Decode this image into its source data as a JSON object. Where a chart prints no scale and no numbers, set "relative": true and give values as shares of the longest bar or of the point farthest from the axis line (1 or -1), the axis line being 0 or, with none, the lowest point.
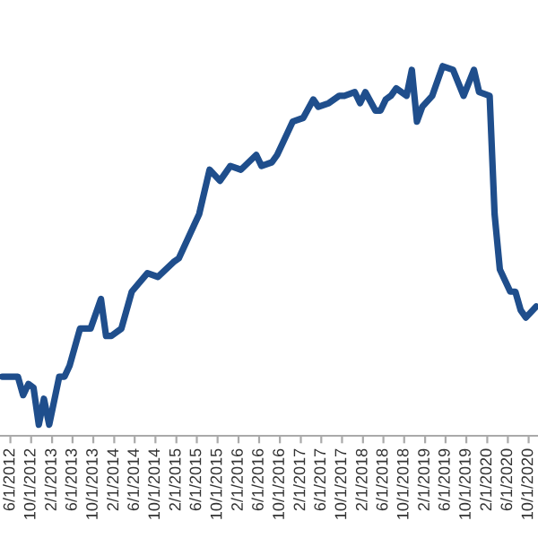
{
  "chart_data": {
    "type": "line",
    "relative": true,
    "marker": "none",
    "line_style": "solid",
    "x": [
      "2012-04",
      "2012-07",
      "2012-08",
      "2012-09",
      "2012-10",
      "2012-11",
      "2012-12",
      "2013-01",
      "2013-03",
      "2013-04",
      "2013-05",
      "2013-07",
      "2013-09",
      "2013-11",
      "2013-12",
      "2014-01",
      "2014-03",
      "2014-05",
      "2014-08",
      "2014-10",
      "2015-01",
      "2015-02",
      "2015-06",
      "2015-08",
      "2015-10",
      "2015-12",
      "2016-02",
      "2016-05",
      "2016-06",
      "2016-08",
      "2016-09",
      "2016-11",
      "2016-12",
      "2017-02",
      "2017-04",
      "2017-05",
      "2017-07",
      "2017-09",
      "2017-10",
      "2017-12",
      "2018-01",
      "2018-02",
      "2018-04",
      "2018-05",
      "2018-06",
      "2018-07",
      "2018-08",
      "2018-10",
      "2018-11",
      "2018-12",
      "2019-01",
      "2019-03",
      "2019-05",
      "2019-07",
      "2019-09",
      "2019-11",
      "2019-12",
      "2020-02",
      "2020-03",
      "2020-04",
      "2020-06",
      "2020-07",
      "2020-08",
      "2020-09",
      "2020-11"
    ],
    "series": [
      {
        "color": "#1f4e8c",
        "values": [
          0.16,
          0.16,
          0.11,
          0.14,
          0.13,
          0.03,
          0.1,
          0.03,
          0.16,
          0.16,
          0.19,
          0.29,
          0.29,
          0.37,
          0.27,
          0.27,
          0.29,
          0.39,
          0.44,
          0.43,
          0.47,
          0.48,
          0.6,
          0.72,
          0.69,
          0.73,
          0.72,
          0.76,
          0.73,
          0.74,
          0.76,
          0.82,
          0.85,
          0.86,
          0.91,
          0.89,
          0.9,
          0.92,
          0.92,
          0.93,
          0.9,
          0.93,
          0.88,
          0.88,
          0.91,
          0.92,
          0.94,
          0.92,
          0.99,
          0.85,
          0.89,
          0.92,
          1.0,
          0.99,
          0.92,
          0.99,
          0.93,
          0.92,
          0.6,
          0.45,
          0.39,
          0.39,
          0.34,
          0.32,
          0.35
        ]
      }
    ],
    "xlim": [
      "2012-04-01",
      "2020-11-25"
    ],
    "xticks": [
      {
        "value": "2012-06-01",
        "label": "6/1/2012"
      },
      {
        "value": "2012-10-01",
        "label": "10/1/2012"
      },
      {
        "value": "2013-02-01",
        "label": "2/1/2013"
      },
      {
        "value": "2013-06-01",
        "label": "6/1/2013"
      },
      {
        "value": "2013-10-01",
        "label": "10/1/2013"
      },
      {
        "value": "2014-02-01",
        "label": "2/1/2014"
      },
      {
        "value": "2014-06-01",
        "label": "6/1/2014"
      },
      {
        "value": "2014-10-01",
        "label": "10/1/2014"
      },
      {
        "value": "2015-02-01",
        "label": "2/1/2015"
      },
      {
        "value": "2015-06-01",
        "label": "6/1/2015"
      },
      {
        "value": "2015-10-01",
        "label": "10/1/2015"
      },
      {
        "value": "2016-02-01",
        "label": "2/1/2016"
      },
      {
        "value": "2016-06-01",
        "label": "6/1/2016"
      },
      {
        "value": "2016-10-01",
        "label": "10/1/2016"
      },
      {
        "value": "2017-02-01",
        "label": "2/1/2017"
      },
      {
        "value": "2017-06-01",
        "label": "6/1/2017"
      },
      {
        "value": "2017-10-01",
        "label": "10/1/2017"
      },
      {
        "value": "2018-02-01",
        "label": "2/1/2018"
      },
      {
        "value": "2018-06-01",
        "label": "6/1/2018"
      },
      {
        "value": "2018-10-01",
        "label": "10/1/2018"
      },
      {
        "value": "2019-02-01",
        "label": "2/1/2019"
      },
      {
        "value": "2019-06-01",
        "label": "6/1/2019"
      },
      {
        "value": "2019-10-01",
        "label": "10/1/2019"
      },
      {
        "value": "2020-02-01",
        "label": "2/1/2020"
      },
      {
        "value": "2020-06-01",
        "label": "6/1/2020"
      },
      {
        "value": "2020-10-01",
        "label": "10/1/2020"
      }
    ]
  }
}
